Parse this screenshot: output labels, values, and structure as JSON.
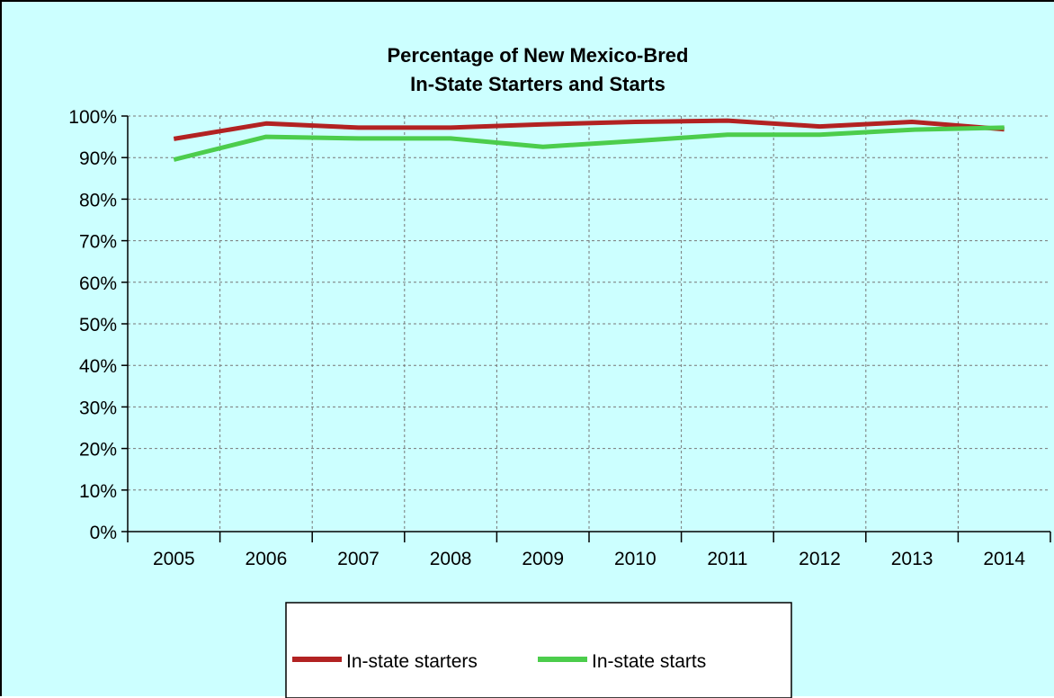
{
  "chart_data": {
    "type": "line",
    "title_lines": [
      "Percentage of New Mexico-Bred",
      "In-State Starters and Starts"
    ],
    "x": [
      "2005",
      "2006",
      "2007",
      "2008",
      "2009",
      "2010",
      "2011",
      "2012",
      "2013",
      "2014"
    ],
    "y_ticks": [
      "0%",
      "10%",
      "20%",
      "30%",
      "40%",
      "50%",
      "60%",
      "70%",
      "80%",
      "90%",
      "100%"
    ],
    "ylim": [
      0,
      100
    ],
    "grid": true,
    "legend_position": "bottom",
    "series": [
      {
        "name": "In-state starters",
        "color": "#b22222",
        "values": [
          94.5,
          98.2,
          97.2,
          97.2,
          98.0,
          98.6,
          98.9,
          97.5,
          98.6,
          96.8
        ]
      },
      {
        "name": "In-state starts",
        "color": "#4ccd4c",
        "values": [
          89.5,
          95.0,
          94.6,
          94.6,
          92.6,
          94.0,
          95.5,
          95.5,
          96.7,
          97.2
        ]
      }
    ]
  }
}
